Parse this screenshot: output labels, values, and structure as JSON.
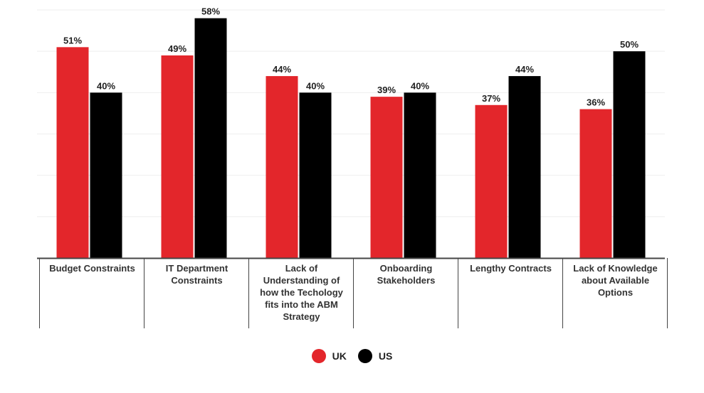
{
  "chart_data": {
    "type": "bar",
    "title": "",
    "xlabel": "",
    "ylabel": "",
    "ylim": [
      0,
      60
    ],
    "grid": true,
    "legend_position": "bottom-center",
    "categories": [
      "Budget Constraints",
      "IT Department Constraints",
      "Lack of Understanding of how the Techology fits into the ABM Strategy",
      "Onboarding Stakeholders",
      "Lengthy Contracts",
      "Lack of Knowledge about Available Options"
    ],
    "category_lines": [
      [
        "Budget Constraints"
      ],
      [
        "IT Department",
        "Constraints"
      ],
      [
        "Lack of",
        "Understanding of",
        "how the Techology",
        "fits into the ABM",
        "Strategy"
      ],
      [
        "Onboarding",
        "Stakeholders"
      ],
      [
        "Lengthy Contracts"
      ],
      [
        "Lack of Knowledge",
        "about Available",
        "Options"
      ]
    ],
    "series": [
      {
        "name": "UK",
        "color": "#e3262b",
        "values": [
          51,
          49,
          44,
          39,
          37,
          36
        ]
      },
      {
        "name": "US",
        "color": "#000000",
        "values": [
          40,
          58,
          40,
          40,
          44,
          50
        ]
      }
    ],
    "value_suffix": "%"
  },
  "legend": {
    "items": [
      {
        "label": "UK",
        "color": "#e3262b"
      },
      {
        "label": "US",
        "color": "#000000"
      }
    ]
  }
}
